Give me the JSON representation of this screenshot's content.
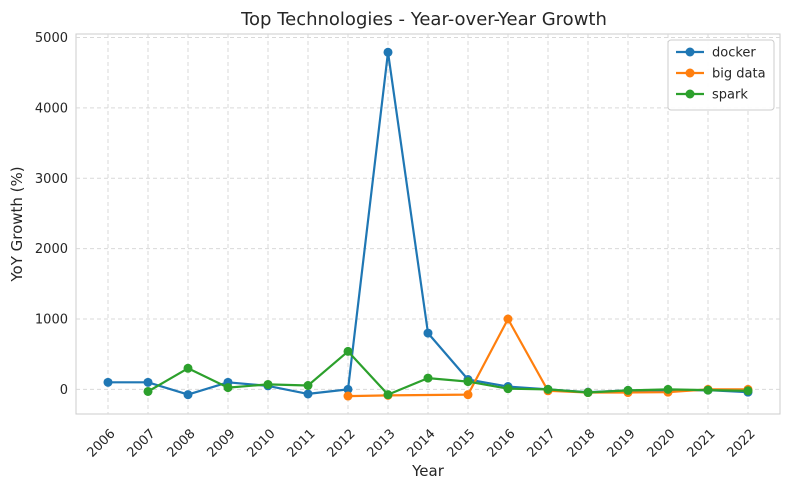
{
  "chart_data": {
    "type": "line",
    "title": "Top Technologies - Year-over-Year Growth",
    "xlabel": "Year",
    "ylabel": "YoY Growth (%)",
    "ylim": [
      -350,
      5050
    ],
    "yticks": [
      0,
      1000,
      2000,
      3000,
      4000,
      5000
    ],
    "categories": [
      "2006",
      "2007",
      "2008",
      "2009",
      "2010",
      "2011",
      "2012",
      "2013",
      "2014",
      "2015",
      "2016",
      "2017",
      "2018",
      "2019",
      "2020",
      "2021",
      "2022"
    ],
    "grid": true,
    "legend_position": "top-right",
    "series": [
      {
        "name": "docker",
        "color": "#1f77b4",
        "values": [
          100,
          100,
          -75,
          100,
          50,
          -65,
          0,
          4790,
          800,
          140,
          40,
          0,
          -40,
          -15,
          -15,
          -10,
          -40
        ]
      },
      {
        "name": "big data",
        "color": "#ff7f0e",
        "values": [
          null,
          null,
          null,
          null,
          null,
          null,
          -95,
          -85,
          null,
          -75,
          1000,
          -20,
          -45,
          -45,
          -40,
          0,
          0
        ]
      },
      {
        "name": "spark",
        "color": "#2ca02c",
        "values": [
          null,
          -30,
          300,
          25,
          70,
          55,
          540,
          -75,
          160,
          110,
          10,
          0,
          -45,
          -15,
          0,
          -10,
          -20
        ]
      }
    ]
  }
}
